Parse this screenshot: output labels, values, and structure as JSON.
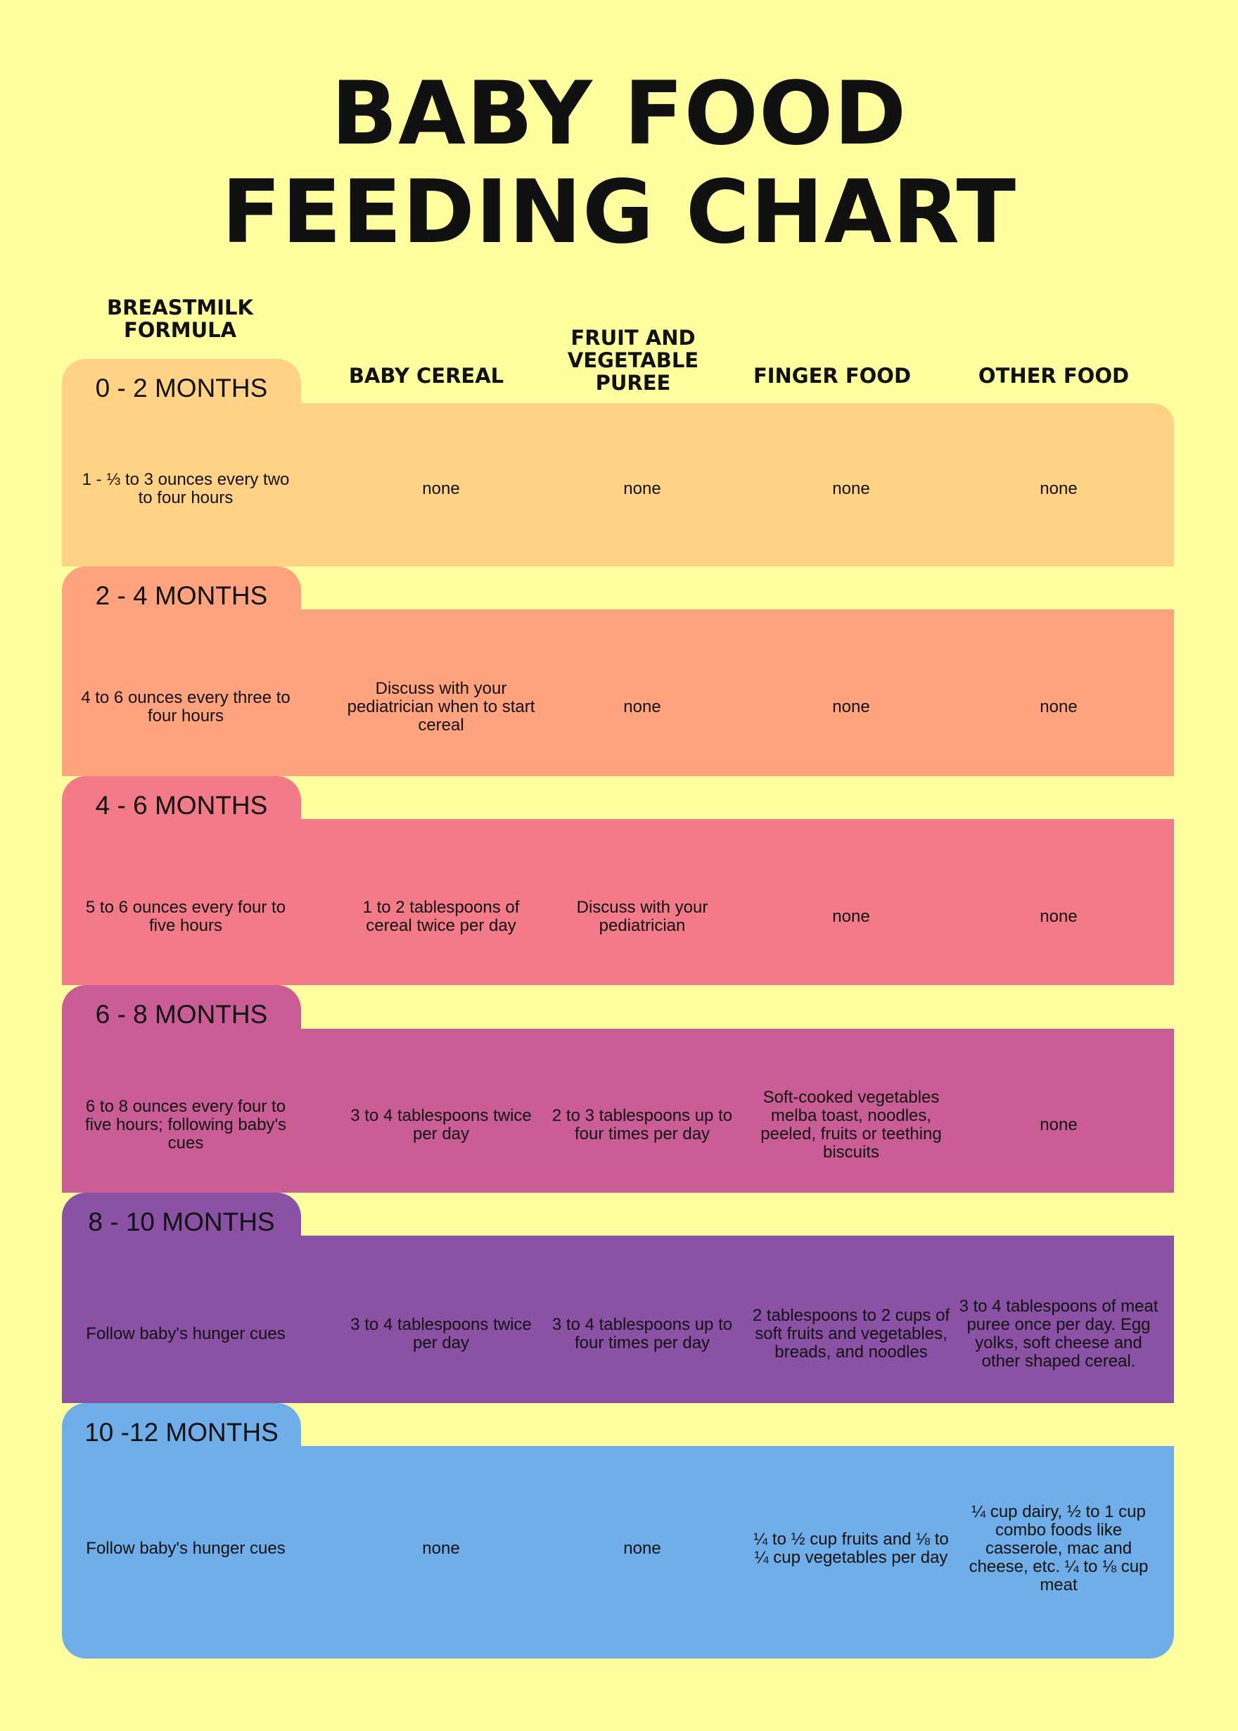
{
  "title": {
    "line1": "BABY FOOD",
    "line2": "FEEDING CHART"
  },
  "columns": [
    "BREASTMILK FORMULA",
    "BABY CEREAL",
    "FRUIT AND VEGETABLE PUREE",
    "FINGER FOOD",
    "OTHER FOOD"
  ],
  "colors": {
    "background": "#FFFFA0"
  },
  "rows": [
    {
      "age": "0 - 2 MONTHS",
      "color": "#FFD285",
      "cells": [
        "1 - ⅓ to 3 ounces every two to four hours",
        "none",
        "none",
        "none",
        "none"
      ]
    },
    {
      "age": "2 - 4 MONTHS",
      "color": "#FFA27E",
      "cells": [
        "4 to 6 ounces every three to four hours",
        "Discuss with your pediatrician when to start cereal",
        "none",
        "none",
        "none"
      ]
    },
    {
      "age": "4 - 6 MONTHS",
      "color": "#F27A89",
      "cells": [
        "5 to 6 ounces every four to five hours",
        "1 to 2 tablespoons of cereal twice per day",
        "Discuss with your pediatrician",
        "none",
        "none"
      ]
    },
    {
      "age": "6 - 8 MONTHS",
      "color": "#CB5D96",
      "cells": [
        "6 to 8 ounces every four to five hours; following baby's cues",
        "3 to 4 tablespoons twice per day",
        "2 to 3 tablespoons up to four times per day",
        "Soft-cooked vegetables  melba toast, noodles, peeled, fruits or teething biscuits",
        "none"
      ]
    },
    {
      "age": "8 - 10 MONTHS",
      "color": "#8B51A5",
      "cells": [
        "Follow baby's hunger cues",
        "3 to 4 tablespoons twice per day",
        "3 to 4 tablespoons up to four times per day",
        "2 tablespoons to 2 cups of soft fruits and vegetables, breads, and noodles",
        "3 to 4 tablespoons of meat puree once per day. Egg yolks, soft cheese and other shaped cereal."
      ]
    },
    {
      "age": "10 -12 MONTHS",
      "color": "#6FAEE8",
      "cells": [
        "Follow baby's hunger cues",
        "none",
        "none",
        "¼ to ½ cup fruits and ⅛ to ¼ cup vegetables per day",
        "¼ cup dairy, ½ to 1 cup combo foods like casserole, mac and cheese, etc. ¼ to ⅛ cup meat"
      ]
    }
  ]
}
